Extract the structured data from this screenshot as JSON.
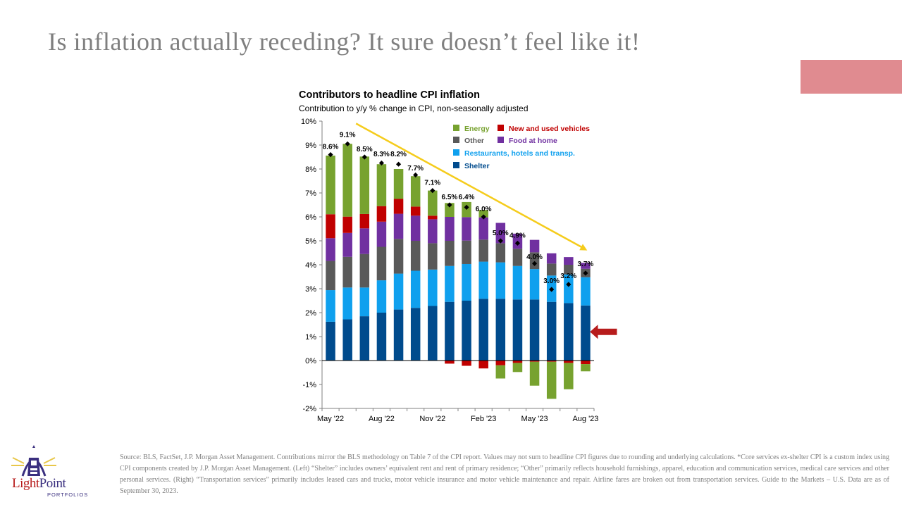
{
  "slide": {
    "title": "Is inflation actually receding? It sure doesn’t feel like it!",
    "accent_color": "#e08b90"
  },
  "chart_data": {
    "type": "bar",
    "stacked": true,
    "title": "Contributors to headline CPI inflation",
    "subtitle": "Contribution to y/y % change in CPI, non-seasonally adjusted",
    "ylim": [
      -2,
      10
    ],
    "y_ticks": [
      "10%",
      "9%",
      "8%",
      "7%",
      "6%",
      "5%",
      "4%",
      "3%",
      "2%",
      "1%",
      "0%",
      "-1%",
      "-2%"
    ],
    "y_tick_values": [
      10,
      9,
      8,
      7,
      6,
      5,
      4,
      3,
      2,
      1,
      0,
      -1,
      -2
    ],
    "categories": [
      "May '22",
      "Jun '22",
      "Jul '22",
      "Aug '22",
      "Sep '22",
      "Oct '22",
      "Nov '22",
      "Dec '22",
      "Jan '23",
      "Feb '23",
      "Mar '23",
      "Apr '23",
      "May '23",
      "Jun '23",
      "Jul '23",
      "Aug '23"
    ],
    "x_tick_labels": [
      {
        "index": 0,
        "label": "May '22"
      },
      {
        "index": 3,
        "label": "Aug '22"
      },
      {
        "index": 6,
        "label": "Nov '22"
      },
      {
        "index": 9,
        "label": "Feb '23"
      },
      {
        "index": 12,
        "label": "May '23"
      },
      {
        "index": 15,
        "label": "Aug '23"
      }
    ],
    "series": [
      {
        "name": "Shelter",
        "color": "#004b8d",
        "values": [
          1.62,
          1.72,
          1.85,
          2.0,
          2.13,
          2.2,
          2.28,
          2.45,
          2.5,
          2.58,
          2.58,
          2.55,
          2.55,
          2.45,
          2.4,
          2.3
        ]
      },
      {
        "name": "Restaurants, hotels and transp.",
        "color": "#0fa0ee",
        "values": [
          1.32,
          1.33,
          1.2,
          1.35,
          1.5,
          1.55,
          1.52,
          1.5,
          1.53,
          1.55,
          1.52,
          1.4,
          1.27,
          1.1,
          1.2,
          1.18
        ]
      },
      {
        "name": "Other",
        "color": "#595959",
        "values": [
          1.22,
          1.28,
          1.4,
          1.4,
          1.45,
          1.25,
          1.1,
          1.05,
          0.98,
          0.92,
          0.8,
          0.72,
          0.7,
          0.5,
          0.4,
          0.35
        ]
      },
      {
        "name": "Food at home",
        "color": "#7030a0",
        "values": [
          0.95,
          1.0,
          1.07,
          1.05,
          1.05,
          1.05,
          1.0,
          1.0,
          0.98,
          0.93,
          0.85,
          0.63,
          0.52,
          0.43,
          0.32,
          0.25
        ]
      },
      {
        "name": "New and used vehicles",
        "color": "#c00000",
        "values": [
          1.0,
          0.68,
          0.6,
          0.65,
          0.62,
          0.38,
          0.15,
          -0.13,
          -0.22,
          -0.33,
          -0.2,
          -0.1,
          -0.05,
          -0.05,
          -0.1,
          -0.15
        ]
      },
      {
        "name": "Energy",
        "color": "#77a22f",
        "values": [
          2.45,
          3.04,
          2.4,
          1.75,
          1.25,
          1.27,
          1.05,
          0.58,
          0.63,
          0.31,
          -0.55,
          -0.38,
          -1.0,
          -1.55,
          -1.1,
          -0.3
        ]
      }
    ],
    "headline": {
      "values": [
        8.6,
        9.1,
        8.5,
        8.3,
        8.2,
        7.7,
        7.1,
        6.5,
        6.4,
        6.0,
        5.0,
        4.9,
        4.0,
        3.0,
        3.2,
        3.7
      ],
      "labels": [
        "8.6%",
        "9.1%",
        "8.5%",
        "8.3%",
        "8.2%",
        "7.7%",
        "7.1%",
        "6.5%",
        "6.4%",
        "6.0%",
        "5.0%",
        "4.9%",
        "4.0%",
        "3.0%",
        "3.2%",
        "3.7%"
      ],
      "markers": [
        8.6,
        9.05,
        8.5,
        8.25,
        8.2,
        7.75,
        7.1,
        6.5,
        6.4,
        6.0,
        5.0,
        4.9,
        4.05,
        2.97,
        3.18,
        3.65
      ],
      "label_tops": [
        8.6,
        9.1,
        8.5,
        8.3,
        8.3,
        7.7,
        7.1,
        6.5,
        6.5,
        6.0,
        5.0,
        4.9,
        4.0,
        3.0,
        3.2,
        3.7
      ]
    },
    "trend_line": {
      "from": [
        0,
        9.9
      ],
      "to": [
        15.6,
        4.6
      ],
      "color": "#f5cc1c"
    },
    "legend_position": "top-right",
    "legend": [
      {
        "label": "Energy",
        "color": "#77a22f",
        "text_color": "#77a22f"
      },
      {
        "label": "New and used vehicles",
        "color": "#c00000",
        "text_color": "#c00000"
      },
      {
        "label": "Other",
        "color": "#595959",
        "text_color": "#595959"
      },
      {
        "label": "Food at home",
        "color": "#7030a0",
        "text_color": "#7030a0"
      },
      {
        "label": "Restaurants, hotels and transp.",
        "color": "#0fa0ee",
        "text_color": "#0fa0ee"
      },
      {
        "label": "Shelter",
        "color": "#004b8d",
        "text_color": "#004b8d"
      }
    ],
    "annotation_arrow": {
      "value": 1.2,
      "color": "#b71c1c"
    }
  },
  "footer": {
    "source_text": "Source: BLS, FactSet, J.P. Morgan Asset Management. Contributions mirror the BLS methodology on Table 7 of the CPI report. Values may not sum to headline CPI figures due to rounding and underlying calculations. *Core services ex-shelter CPI is a custom index using CPI components created by J.P. Morgan Asset Management. (Left) “Shelter” includes owners’ equivalent rent and rent of primary residence; “Other” primarily reflects household furnishings, apparel, education and communication services, medical care services and other personal services. (Right) “Transportation services” primarily includes leased cars and trucks, motor vehicle insurance and motor vehicle maintenance and repair. Airline fares are broken out from transportation services. Guide to the Markets – U.S. Data are as of September 30, 2023."
  },
  "logo": {
    "name_part1": "Light",
    "name_part2": "Point",
    "subtitle": "PORTFOLIOS"
  }
}
